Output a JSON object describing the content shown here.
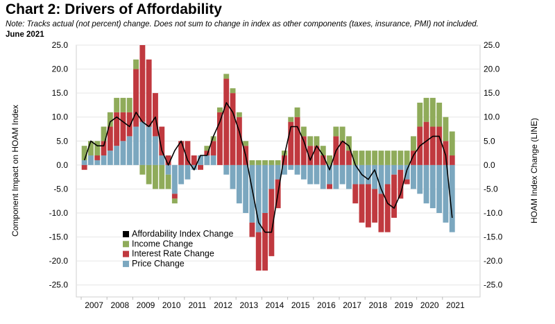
{
  "header": {
    "title": "Chart 2: Drivers of Affordability",
    "note": "Note: Tracks actual (not percent) change. Does not sum to change in index as other components (taxes, insurance, PMI) not included.",
    "date": "June 2021"
  },
  "colors": {
    "price": "#7ba7bf",
    "interest": "#c0393f",
    "income": "#8fab5a",
    "line": "#000000",
    "grid": "#e6e6e6"
  },
  "chart_data": {
    "type": "bar",
    "stacked": true,
    "title": "Chart 2: Drivers of Affordability",
    "ylabel_left": "Component Impact on HOAM Index",
    "ylabel_right": "HOAM Index Change (LINE)",
    "ylim": [
      -27.5,
      25
    ],
    "yticks": [
      "25.0",
      "20.0",
      "15.0",
      "10.0",
      "5.0",
      "0.0",
      "-5.0",
      "-10.0",
      "-15.0",
      "-20.0",
      "-25.0"
    ],
    "yticks_right": [
      "25.0",
      "20.0",
      "15.0",
      "10.0",
      "5.0",
      "0.0",
      "-5.0",
      "-10.0",
      "-15.0",
      "-20.0",
      "-25.0"
    ],
    "xtick_labels": [
      "2007",
      "2008",
      "2009",
      "2010",
      "2011",
      "2012",
      "2013",
      "2014",
      "2015",
      "2016",
      "2017",
      "2018",
      "2019",
      "2020",
      "2021"
    ],
    "legend_position": "bottom-left",
    "grid": "horizontal",
    "frequency": "quarterly",
    "x": [
      "2007Q1",
      "2007Q2",
      "2007Q3",
      "2007Q4",
      "2008Q1",
      "2008Q2",
      "2008Q3",
      "2008Q4",
      "2009Q1",
      "2009Q2",
      "2009Q3",
      "2009Q4",
      "2010Q1",
      "2010Q2",
      "2010Q3",
      "2010Q4",
      "2011Q1",
      "2011Q2",
      "2011Q3",
      "2011Q4",
      "2012Q1",
      "2012Q2",
      "2012Q3",
      "2012Q4",
      "2013Q1",
      "2013Q2",
      "2013Q3",
      "2013Q4",
      "2014Q1",
      "2014Q2",
      "2014Q3",
      "2014Q4",
      "2015Q1",
      "2015Q2",
      "2015Q3",
      "2015Q4",
      "2016Q1",
      "2016Q2",
      "2016Q3",
      "2016Q4",
      "2017Q1",
      "2017Q2",
      "2017Q3",
      "2017Q4",
      "2018Q1",
      "2018Q2",
      "2018Q3",
      "2018Q4",
      "2019Q1",
      "2019Q2",
      "2019Q3",
      "2019Q4",
      "2020Q1",
      "2020Q2",
      "2020Q3",
      "2020Q4",
      "2021Q1",
      "2021Q2"
    ],
    "series": [
      {
        "name": "Affordability Index Change",
        "type": "line",
        "values": [
          1,
          5,
          4,
          4,
          9,
          10,
          9,
          8,
          11,
          9,
          8,
          10,
          3,
          0,
          3,
          5,
          1,
          -1,
          2,
          2,
          6,
          9,
          13,
          11,
          7,
          2,
          -5,
          -12,
          -14,
          -14,
          -6,
          2,
          8,
          8,
          5,
          1,
          4,
          2,
          -1,
          3,
          5,
          4,
          0,
          -2,
          -3,
          -1,
          -5,
          -8,
          -9,
          -6,
          -1,
          2,
          4,
          5,
          6,
          6,
          2,
          -11
        ]
      },
      {
        "name": "Income Change",
        "type": "bar",
        "values": [
          3,
          3,
          3,
          3,
          3,
          3,
          3,
          3,
          2,
          -2,
          -4,
          -5,
          -5,
          -3,
          -1,
          0,
          0,
          0,
          0,
          1,
          1,
          1,
          1,
          1,
          1,
          1,
          1,
          1,
          1,
          1,
          1,
          1,
          1,
          2,
          2,
          2,
          2,
          2,
          2,
          2,
          3,
          3,
          3,
          3,
          3,
          3,
          3,
          3,
          3,
          3,
          3,
          3,
          5,
          5,
          6,
          5,
          5,
          5
        ]
      },
      {
        "name": "Interest Rate Change",
        "type": "bar",
        "values": [
          -1,
          0,
          1,
          3,
          5,
          7,
          6,
          5,
          12,
          16,
          14,
          9,
          6,
          2,
          -1,
          5,
          5,
          2,
          -1,
          1,
          3,
          11,
          18,
          15,
          10,
          4,
          -3,
          -8,
          -12,
          -14,
          -6,
          2,
          9,
          10,
          6,
          4,
          4,
          2,
          -1,
          6,
          5,
          3,
          -4,
          -8,
          -9,
          -7,
          -8,
          -10,
          -9,
          -6,
          -1,
          3,
          8,
          9,
          8,
          8,
          5,
          2
        ]
      },
      {
        "name": "Price Change",
        "type": "bar",
        "values": [
          1,
          2,
          1,
          2,
          3,
          4,
          5,
          6,
          8,
          9,
          8,
          6,
          2,
          -2,
          -6,
          -4,
          -3,
          -1,
          2,
          2,
          2,
          0,
          -2,
          -5,
          -8,
          -10,
          -12,
          -14,
          -10,
          -5,
          -3,
          -2,
          -1,
          -2,
          -3,
          -4,
          -4,
          -5,
          -4,
          -5,
          -4,
          -5,
          -4,
          -4,
          -4,
          -5,
          -6,
          -4,
          -2,
          -1,
          -3,
          -5,
          -6,
          -8,
          -9,
          -10,
          -12,
          -14
        ]
      }
    ],
    "annotations": []
  }
}
